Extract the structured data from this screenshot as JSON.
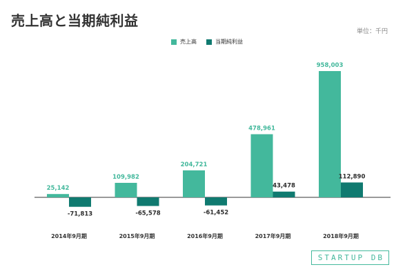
{
  "title": "売上高と当期純利益",
  "unit": "単位：千円",
  "logo_text": "STARTUP DB",
  "colors": {
    "revenue": "#43b89c",
    "net_income": "#107a70",
    "axis": "#333333",
    "label_revenue": "#43b89c",
    "label_income": "#2c2c2c"
  },
  "chart_data": {
    "type": "bar",
    "title": "売上高と当期純利益",
    "categories": [
      "2014年9月期",
      "2015年9月期",
      "2016年9月期",
      "2017年9月期",
      "2018年9月期"
    ],
    "series": [
      {
        "name": "売上高",
        "values": [
          25142,
          109982,
          204721,
          478961,
          958003
        ],
        "labels": [
          "25,142",
          "109,982",
          "204,721",
          "478,961",
          "958,003"
        ]
      },
      {
        "name": "当期純利益",
        "values": [
          -71813,
          -65578,
          -61452,
          43478,
          112890
        ],
        "labels": [
          "-71,813",
          "-65,578",
          "-61,452",
          "43,478",
          "112,890"
        ]
      }
    ],
    "legend_position": "top-center",
    "grid": false,
    "ylim": [
      -150000,
      1000000
    ]
  }
}
